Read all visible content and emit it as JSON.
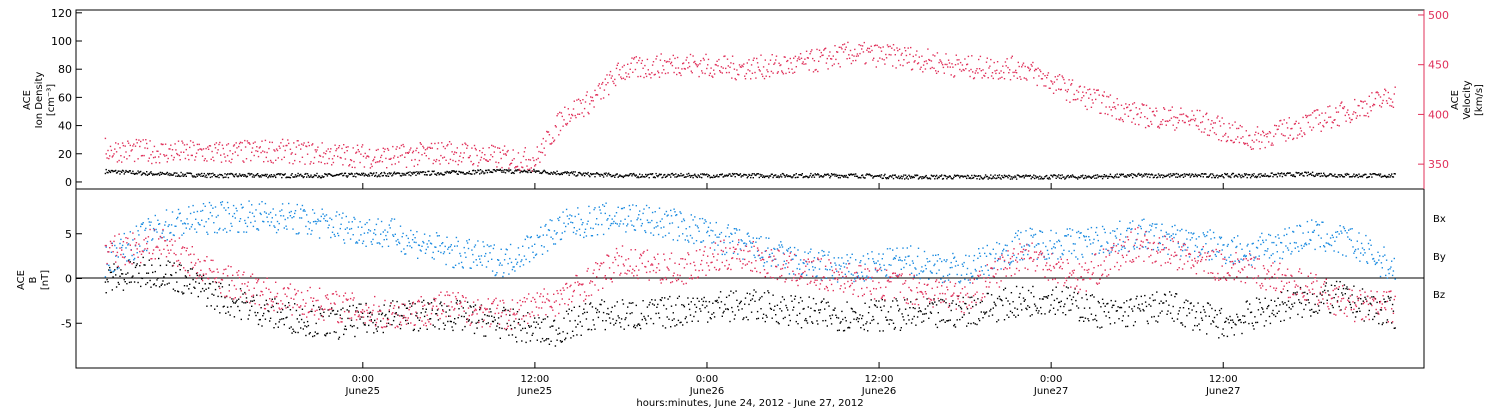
{
  "colors": {
    "black": "#000000",
    "density": "#000000",
    "velocity": "#e0305a",
    "bx": "#000000",
    "by": "#1a8ae0",
    "bz": "#e0305a",
    "axis": "#000000",
    "right_axis": "#e0305a"
  },
  "xaxis": {
    "title": "hours:minutes, June 24, 2012 - June 27, 2012",
    "ticks": [
      {
        "time": "0:00",
        "date": "June25"
      },
      {
        "time": "12:00",
        "date": "June25"
      },
      {
        "time": "0:00",
        "date": "June26"
      },
      {
        "time": "12:00",
        "date": "June26"
      },
      {
        "time": "0:00",
        "date": "June27"
      },
      {
        "time": "12:00",
        "date": "June27"
      }
    ]
  },
  "chart_data": [
    {
      "type": "scatter",
      "panel": "plasma",
      "ylabel_left": [
        "ACE",
        "Ion Density",
        "[cm⁻³]"
      ],
      "ylabel_right": [
        "ACE",
        "Velocity",
        "[km/s]"
      ],
      "ylim_left": [
        -5,
        122
      ],
      "ylim_right": [
        325,
        505
      ],
      "yticks_left": [
        "0",
        "20",
        "40",
        "60",
        "80",
        "100",
        "120"
      ],
      "yticks_right": [
        "350",
        "400",
        "450",
        "500"
      ],
      "x_range_hours": [
        -20,
        74
      ],
      "series": [
        {
          "axis": "left",
          "color_key": "density",
          "points": [
            [
              -18,
              8
            ],
            [
              -14,
              6
            ],
            [
              -10,
              5
            ],
            [
              -6,
              5
            ],
            [
              -2,
              5
            ],
            [
              2,
              6
            ],
            [
              6,
              7
            ],
            [
              9,
              8
            ],
            [
              12,
              8
            ],
            [
              15,
              6
            ],
            [
              18,
              5
            ],
            [
              22,
              5
            ],
            [
              26,
              5
            ],
            [
              30,
              5
            ],
            [
              34,
              5
            ],
            [
              38,
              4
            ],
            [
              42,
              4
            ],
            [
              46,
              4
            ],
            [
              50,
              4
            ],
            [
              54,
              5
            ],
            [
              58,
              5
            ],
            [
              62,
              5
            ],
            [
              66,
              6
            ],
            [
              69,
              5
            ],
            [
              72,
              5
            ]
          ]
        },
        {
          "axis": "right",
          "color_key": "velocity",
          "points": [
            [
              -18,
              365
            ],
            [
              -14,
              363
            ],
            [
              -10,
              362
            ],
            [
              -6,
              364
            ],
            [
              -2,
              360
            ],
            [
              2,
              358
            ],
            [
              6,
              363
            ],
            [
              9,
              358
            ],
            [
              12,
              355
            ],
            [
              14,
              400
            ],
            [
              16,
              415
            ],
            [
              18,
              445
            ],
            [
              22,
              452
            ],
            [
              26,
              447
            ],
            [
              30,
              450
            ],
            [
              34,
              462
            ],
            [
              38,
              458
            ],
            [
              42,
              448
            ],
            [
              46,
              447
            ],
            [
              50,
              420
            ],
            [
              54,
              400
            ],
            [
              58,
              395
            ],
            [
              62,
              375
            ],
            [
              66,
              392
            ],
            [
              69,
              405
            ],
            [
              72,
              420
            ]
          ]
        }
      ]
    },
    {
      "type": "scatter",
      "panel": "magnetic-field",
      "ylabel_left": [
        "ACE",
        "B",
        "[nT]"
      ],
      "ylim": [
        -10,
        10
      ],
      "yticks": [
        "-5",
        "0",
        "5"
      ],
      "legend": [
        "Bx",
        "By",
        "Bz"
      ],
      "x_range_hours": [
        -20,
        74
      ],
      "series": [
        {
          "name": "Bx",
          "color_key": "bx",
          "points": [
            [
              -18,
              0
            ],
            [
              -14,
              1
            ],
            [
              -10,
              -2
            ],
            [
              -6,
              -4
            ],
            [
              -2,
              -5
            ],
            [
              2,
              -4
            ],
            [
              6,
              -4
            ],
            [
              10,
              -5
            ],
            [
              13,
              -6
            ],
            [
              16,
              -4
            ],
            [
              20,
              -4
            ],
            [
              24,
              -3
            ],
            [
              28,
              -3
            ],
            [
              32,
              -4
            ],
            [
              36,
              -4
            ],
            [
              40,
              -4
            ],
            [
              44,
              -3
            ],
            [
              48,
              -2
            ],
            [
              52,
              -4
            ],
            [
              56,
              -3
            ],
            [
              60,
              -5
            ],
            [
              64,
              -3
            ],
            [
              68,
              -2
            ],
            [
              72,
              -4
            ]
          ]
        },
        {
          "name": "By",
          "color_key": "by",
          "points": [
            [
              -18,
              2
            ],
            [
              -14,
              6
            ],
            [
              -10,
              7
            ],
            [
              -6,
              7
            ],
            [
              -2,
              6
            ],
            [
              2,
              5
            ],
            [
              6,
              3
            ],
            [
              10,
              2
            ],
            [
              14,
              6
            ],
            [
              18,
              7
            ],
            [
              22,
              6
            ],
            [
              26,
              4
            ],
            [
              30,
              2
            ],
            [
              34,
              1
            ],
            [
              38,
              2
            ],
            [
              42,
              1
            ],
            [
              46,
              4
            ],
            [
              50,
              4
            ],
            [
              54,
              5
            ],
            [
              58,
              4
            ],
            [
              62,
              3
            ],
            [
              66,
              5
            ],
            [
              69,
              4
            ],
            [
              72,
              1
            ]
          ]
        },
        {
          "name": "Bz",
          "color_key": "bz",
          "points": [
            [
              -18,
              3
            ],
            [
              -14,
              4
            ],
            [
              -10,
              0
            ],
            [
              -6,
              -2
            ],
            [
              -2,
              -3
            ],
            [
              2,
              -4
            ],
            [
              6,
              -3
            ],
            [
              10,
              -4
            ],
            [
              14,
              -2
            ],
            [
              18,
              2
            ],
            [
              22,
              1
            ],
            [
              26,
              3
            ],
            [
              30,
              1
            ],
            [
              34,
              0
            ],
            [
              38,
              -1
            ],
            [
              42,
              -2
            ],
            [
              46,
              3
            ],
            [
              50,
              0
            ],
            [
              54,
              4
            ],
            [
              58,
              2
            ],
            [
              62,
              1
            ],
            [
              66,
              -1
            ],
            [
              69,
              -3
            ],
            [
              72,
              -3
            ]
          ]
        }
      ]
    }
  ]
}
